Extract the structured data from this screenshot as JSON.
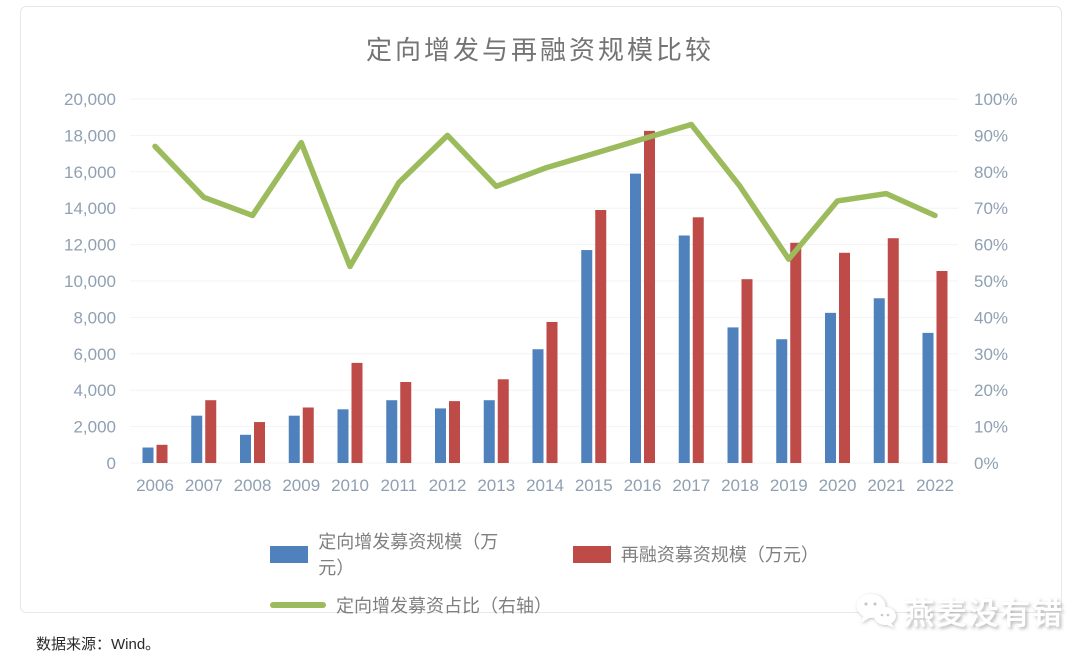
{
  "title": "定向增发与再融资规模比较",
  "source_note": "数据来源：Wind。",
  "watermark": {
    "text": "燕麦没有错",
    "icon": "wechat-chat-bubbles"
  },
  "colors": {
    "blue_bar": "#4F81BD",
    "red_bar": "#BE4B48",
    "green_line": "#9CBB5C",
    "tick_text": "#8FA0B2",
    "gridline": "#F3F3F3",
    "title_text": "#747474",
    "legend_text": "#7F7F7F"
  },
  "chart_data": {
    "type": "bar",
    "subtype": "grouped-bars-with-line",
    "title": "定向增发与再融资规模比较",
    "categories": [
      "2006",
      "2007",
      "2008",
      "2009",
      "2010",
      "2011",
      "2012",
      "2013",
      "2014",
      "2015",
      "2016",
      "2017",
      "2018",
      "2019",
      "2020",
      "2021",
      "2022"
    ],
    "series": [
      {
        "name": "定向增发募资规模（万元）",
        "type": "bar",
        "axis": "left",
        "color_key": "blue_bar",
        "values": [
          850,
          2600,
          1550,
          2600,
          2950,
          3450,
          3000,
          3450,
          6250,
          11700,
          15900,
          12500,
          7450,
          6800,
          8250,
          9050,
          7150
        ]
      },
      {
        "name": "再融资募资规模（万元）",
        "type": "bar",
        "axis": "left",
        "color_key": "red_bar",
        "values": [
          1000,
          3450,
          2250,
          3050,
          5500,
          4450,
          3400,
          4600,
          7750,
          13900,
          18250,
          13500,
          10100,
          12100,
          11550,
          12350,
          10550
        ]
      },
      {
        "name": "定向增发募资占比（右轴）",
        "type": "line",
        "axis": "right",
        "color_key": "green_line",
        "values": [
          87,
          73,
          68,
          88,
          54,
          77,
          90,
          76,
          81,
          85,
          89,
          93,
          76,
          56,
          72,
          74,
          68
        ]
      }
    ],
    "left_axis": {
      "min": 0,
      "max": 20000,
      "step": 2000
    },
    "right_axis": {
      "min": 0,
      "max": 100,
      "step": 10,
      "suffix": "%"
    },
    "grid": true,
    "legend_position": "bottom"
  }
}
